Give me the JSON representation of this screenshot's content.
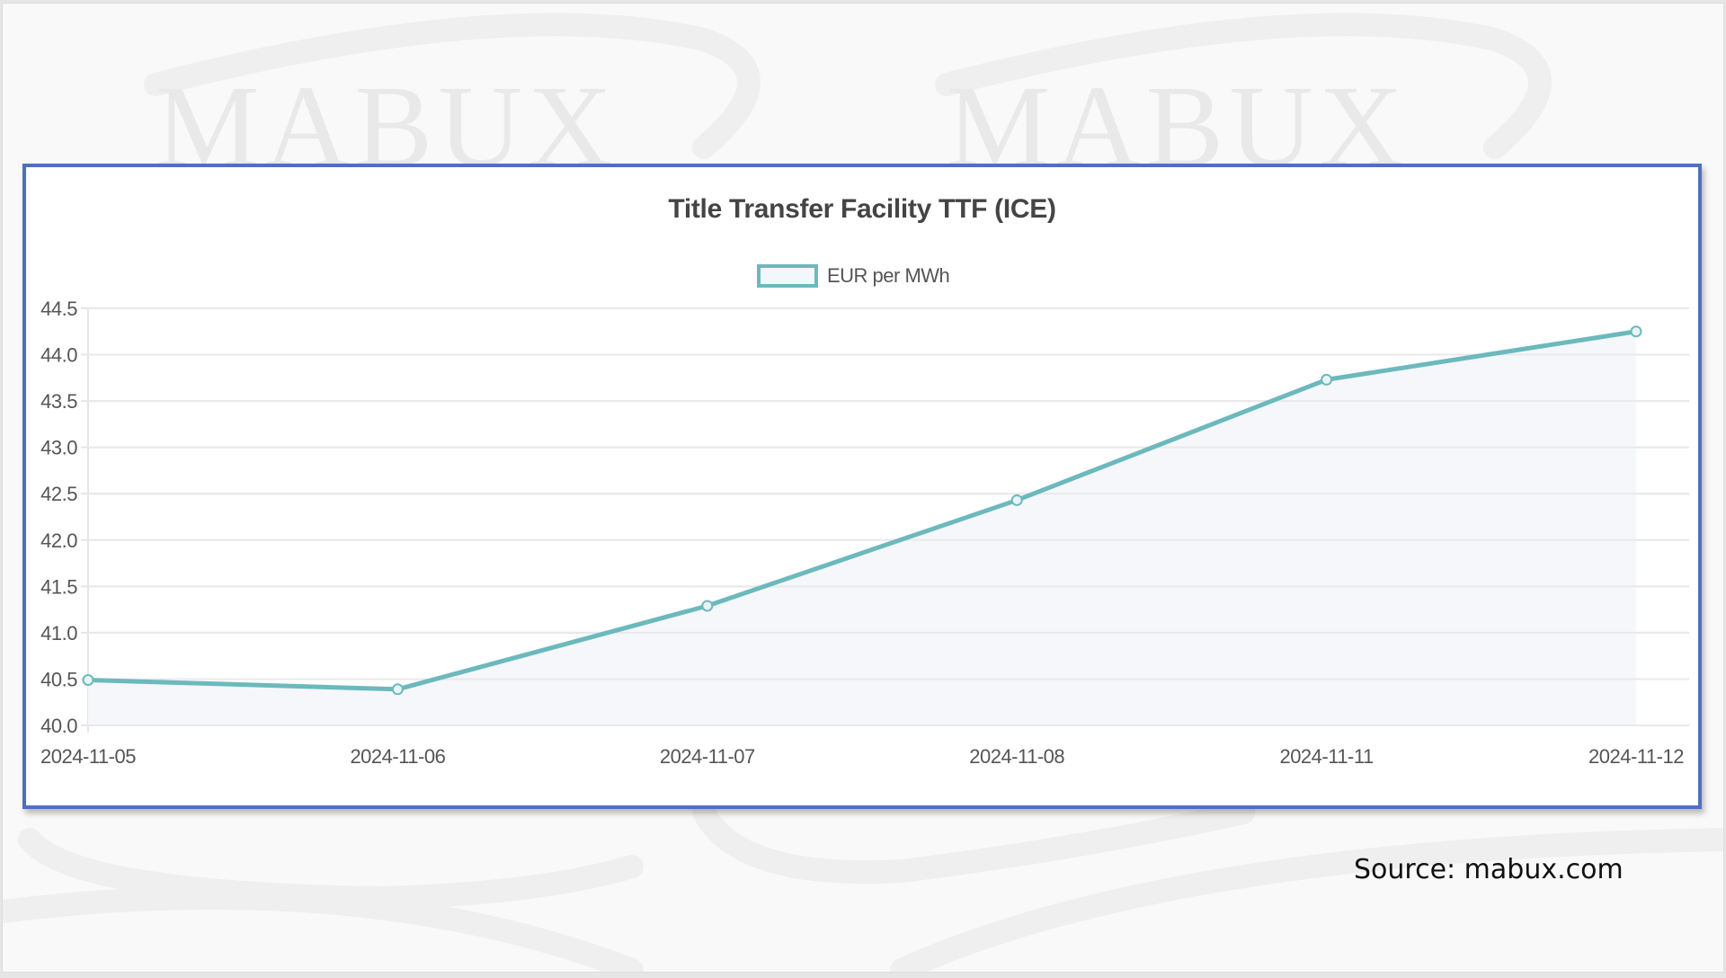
{
  "watermark": {
    "text": "MABUX"
  },
  "chart": {
    "title": "Title Transfer Facility TTF (ICE)",
    "legend_label": "EUR per MWh",
    "line_color": "#6cb9bd",
    "fill_color": "#f5f7fb",
    "border_color": "#4e70be"
  },
  "source": "Source: mabux.com",
  "chart_data": {
    "type": "line",
    "title": "Title Transfer Facility TTF (ICE)",
    "xlabel": "",
    "ylabel": "",
    "categories": [
      "2024-11-05",
      "2024-11-06",
      "2024-11-07",
      "2024-11-08",
      "2024-11-11",
      "2024-11-12"
    ],
    "series": [
      {
        "name": "EUR per MWh",
        "values": [
          40.49,
          40.39,
          41.29,
          42.43,
          43.73,
          44.25
        ]
      }
    ],
    "y_ticks": [
      "40.0",
      "40.5",
      "41.0",
      "41.5",
      "42.0",
      "42.5",
      "43.0",
      "43.5",
      "44.0",
      "44.5"
    ],
    "ylim": [
      40.0,
      44.5
    ],
    "grid": true,
    "legend_position": "top",
    "fill": true
  }
}
